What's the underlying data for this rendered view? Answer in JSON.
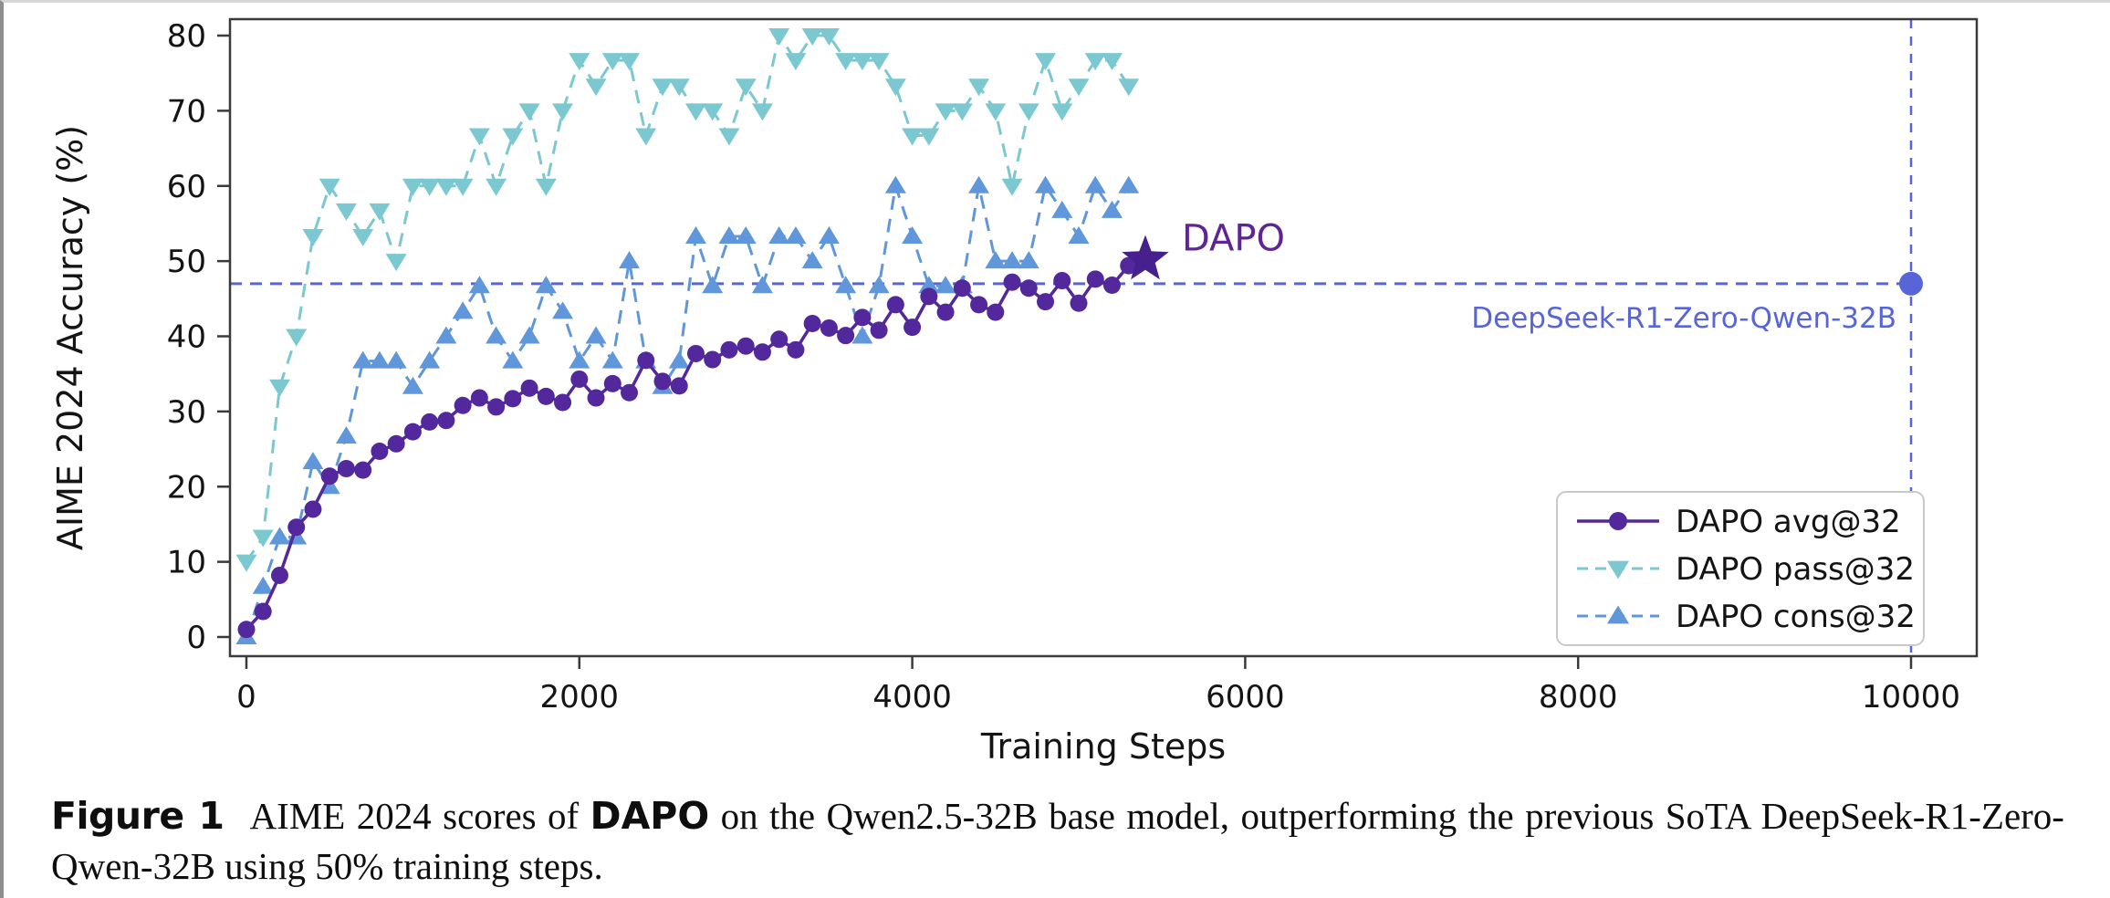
{
  "figure": {
    "caption": {
      "segments": [
        {
          "text": "Figure 1",
          "bold": true
        },
        {
          "text": "AIME 2024 scores of ",
          "bold": false
        },
        {
          "text": "DAPO",
          "bold": true
        },
        {
          "text": " on the Qwen2.5-32B base model, outperforming the previous SoTA DeepSeek-R1-Zero-Qwen-32B using 50% training steps.",
          "bold": false
        }
      ]
    }
  },
  "chart_data": {
    "type": "line",
    "title": "",
    "xlabel": "Training Steps",
    "ylabel": "AIME 2024 Accuracy (%)",
    "xlim": [
      0,
      10600
    ],
    "ylim": [
      0,
      82
    ],
    "x_ticks": [
      0,
      2000,
      4000,
      6000,
      8000,
      10000
    ],
    "y_ticks": [
      0,
      10,
      20,
      30,
      40,
      50,
      60,
      70,
      80
    ],
    "grid": false,
    "legend_position": "lower right",
    "steps": [
      0,
      100,
      200,
      300,
      400,
      500,
      600,
      700,
      800,
      900,
      1000,
      1100,
      1200,
      1300,
      1400,
      1500,
      1600,
      1700,
      1800,
      1900,
      2000,
      2100,
      2200,
      2300,
      2400,
      2500,
      2600,
      2700,
      2800,
      2900,
      3000,
      3100,
      3200,
      3300,
      3400,
      3500,
      3600,
      3700,
      3800,
      3900,
      4000,
      4100,
      4200,
      4300,
      4400,
      4500,
      4600,
      4700,
      4800,
      4900,
      5000,
      5100,
      5200,
      5300
    ],
    "series": [
      {
        "name": "DAPO avg@32",
        "color": "#52289c",
        "marker": "circle",
        "line": "solid",
        "values": [
          1.0,
          3.4,
          8.2,
          14.6,
          17.0,
          21.4,
          22.4,
          22.2,
          24.7,
          25.7,
          27.3,
          28.6,
          28.8,
          30.8,
          31.8,
          30.6,
          31.7,
          33.1,
          32.0,
          31.2,
          34.3,
          31.8,
          33.7,
          32.5,
          36.8,
          34.0,
          33.4,
          37.7,
          36.9,
          38.2,
          38.7,
          37.9,
          39.6,
          38.2,
          41.7,
          41.1,
          40.1,
          42.5,
          40.8,
          44.2,
          41.2,
          45.3,
          43.2,
          46.4,
          44.2,
          43.2,
          47.2,
          46.4,
          44.6,
          47.4,
          44.4,
          47.6,
          46.8,
          49.4
        ]
      },
      {
        "name": "DAPO pass@32",
        "color": "#7cc8d0",
        "marker": "triangle-down",
        "line": "dashed",
        "values": [
          10,
          13.3,
          33.3,
          40,
          53.3,
          60,
          56.7,
          53.3,
          56.7,
          50,
          60,
          60,
          60,
          60,
          66.7,
          60,
          66.7,
          70,
          60,
          70,
          76.7,
          73.3,
          76.7,
          76.7,
          66.7,
          73.3,
          73.3,
          70,
          70,
          66.7,
          73.3,
          70,
          80,
          76.7,
          80,
          80,
          76.7,
          76.7,
          76.7,
          73.3,
          66.7,
          66.7,
          70,
          70,
          73.3,
          70,
          60,
          70,
          76.7,
          70,
          73.3,
          76.7,
          76.7,
          73.3
        ]
      },
      {
        "name": "DAPO cons@32",
        "color": "#6096da",
        "marker": "triangle-up",
        "line": "dashed",
        "values": [
          0,
          6.7,
          13.3,
          13.3,
          23.3,
          20,
          26.7,
          36.7,
          36.7,
          36.7,
          33.3,
          36.7,
          40,
          43.3,
          46.7,
          40,
          36.7,
          40,
          46.7,
          43.3,
          36.7,
          40,
          36.7,
          50,
          36.7,
          33.3,
          36.7,
          53.3,
          46.7,
          53.3,
          53.3,
          46.7,
          53.3,
          53.3,
          50,
          53.3,
          46.7,
          40,
          46.7,
          60,
          53.3,
          46.7,
          46.7,
          46.7,
          60,
          50,
          50,
          50,
          60,
          56.7,
          53.3,
          60,
          56.7,
          60
        ]
      }
    ],
    "annotations": {
      "dapo_star": {
        "label": "DAPO",
        "x": 5400,
        "y": 50.2,
        "color": "#5f2496"
      },
      "baseline": {
        "label": "DeepSeek-R1-Zero-Qwen-32B",
        "x": 10000,
        "y": 47,
        "hline_y": 47,
        "vline_x": 10000,
        "color": "#5765d8"
      }
    }
  }
}
